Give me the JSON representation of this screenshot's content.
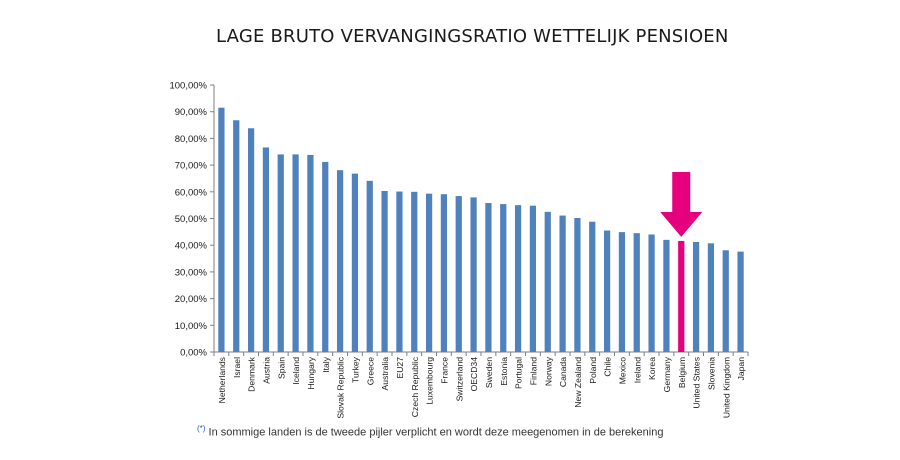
{
  "chart_data": {
    "type": "bar",
    "title": "LAGE BRUTO VERVANGINGSRATIO WETTELIJK PENSIOEN",
    "xlabel": "",
    "ylabel": "",
    "ylim": [
      0,
      100
    ],
    "ytick_labels": [
      "0,00%",
      "10,00%",
      "20,00%",
      "30,00%",
      "40,00%",
      "50,00%",
      "60,00%",
      "70,00%",
      "80,00%",
      "90,00%",
      "100,00%"
    ],
    "categories": [
      "Netherlands",
      "Israel",
      "Denmark",
      "Austria",
      "Spain",
      "Iceland",
      "Hungary",
      "Italy",
      "Slovak Republic",
      "Turkey",
      "Greece",
      "Australia",
      "EU27",
      "Czech Republic",
      "Luxembourg",
      "France",
      "Switzerland",
      "OECD34",
      "Sweden",
      "Estonia",
      "Portugal",
      "Finland",
      "Norway",
      "Canada",
      "New Zealand",
      "Poland",
      "Chile",
      "Mexico",
      "Ireland",
      "Korea",
      "Germany",
      "Belgium",
      "United States",
      "Slovenia",
      "United Kingdom",
      "Japan"
    ],
    "values": [
      91.5,
      86.8,
      83.8,
      76.6,
      74.0,
      74.0,
      73.8,
      71.2,
      68.1,
      66.8,
      64.1,
      60.3,
      60.1,
      60.0,
      59.3,
      59.1,
      58.4,
      57.9,
      55.8,
      55.4,
      55.0,
      54.8,
      52.5,
      51.1,
      50.2,
      48.8,
      45.5,
      44.9,
      44.5,
      44.0,
      42.0,
      41.6,
      41.2,
      40.7,
      38.1,
      37.6
    ],
    "highlight_category": "Belgium",
    "grid": false,
    "legend": "none",
    "colors": {
      "bar": "#4f81bd",
      "highlight": "#e6007e",
      "arrow": "#e6007e",
      "axis": "#7f7f7f"
    }
  },
  "footnote": {
    "marker": "(*)",
    "text": " In sommige  landen  is de tweede pijler verplicht  en wordt deze meegenomen  in de berekening"
  }
}
